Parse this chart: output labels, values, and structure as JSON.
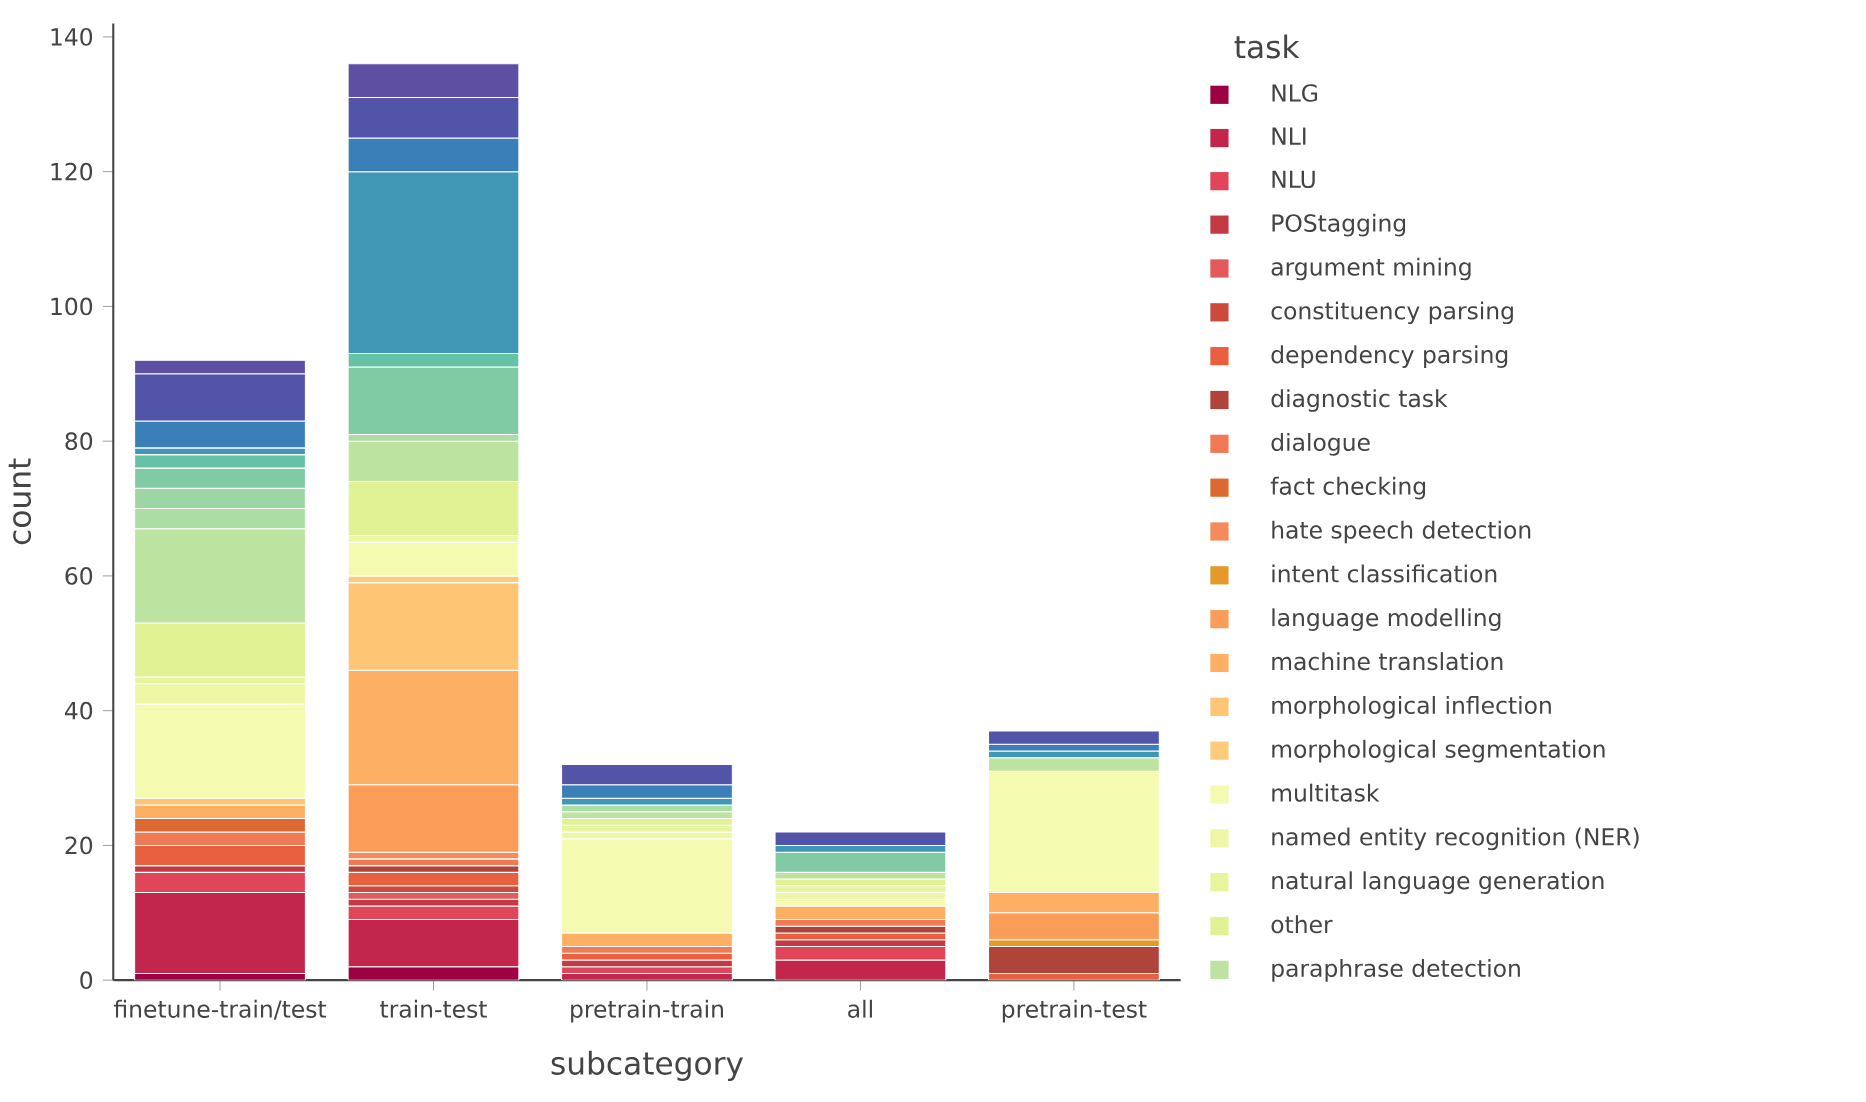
{
  "chart_data": {
    "type": "bar",
    "stacked": true,
    "xlabel": "subcategory",
    "ylabel": "count",
    "legend_title": "task",
    "legend": "right",
    "categories": [
      "finetune-train/test",
      "train-test",
      "pretrain-train",
      "all",
      "pretrain-test"
    ],
    "ylim": [
      0,
      142
    ],
    "yticks": [
      0,
      20,
      40,
      60,
      80,
      100,
      120,
      140
    ],
    "series": [
      {
        "name": "NLG",
        "color": "#9e0142",
        "values": [
          1,
          2,
          0,
          0,
          0
        ]
      },
      {
        "name": "NLI",
        "color": "#c2264a",
        "values": [
          12,
          7,
          1,
          3,
          0
        ]
      },
      {
        "name": "NLU",
        "color": "#e0455a",
        "values": [
          3,
          2,
          1,
          2,
          0
        ]
      },
      {
        "name": "POStagging",
        "color": "#c33a45",
        "values": [
          1,
          1,
          1,
          1,
          0
        ]
      },
      {
        "name": "argument mining",
        "color": "#e25a5a",
        "values": [
          0,
          1,
          0,
          0,
          0
        ]
      },
      {
        "name": "constituency parsing",
        "color": "#cc4a3c",
        "values": [
          0,
          1,
          0,
          0,
          0
        ]
      },
      {
        "name": "dependency parsing",
        "color": "#e86040",
        "values": [
          3,
          2,
          1,
          1,
          1
        ]
      },
      {
        "name": "diagnostic task",
        "color": "#b0443a",
        "values": [
          0,
          1,
          0,
          1,
          4
        ]
      },
      {
        "name": "dialogue",
        "color": "#f07a55",
        "values": [
          2,
          1,
          1,
          1,
          0
        ]
      },
      {
        "name": "fact checking",
        "color": "#dc6a30",
        "values": [
          2,
          0,
          0,
          0,
          0
        ]
      },
      {
        "name": "hate speech detection",
        "color": "#f58a5a",
        "values": [
          0,
          1,
          0,
          0,
          0
        ]
      },
      {
        "name": "intent classification",
        "color": "#e39a2a",
        "values": [
          0,
          0,
          0,
          0,
          1
        ]
      },
      {
        "name": "language modelling",
        "color": "#f99d59",
        "values": [
          0,
          10,
          0,
          0,
          4
        ]
      },
      {
        "name": "machine translation",
        "color": "#fdb063",
        "values": [
          2,
          17,
          2,
          2,
          3
        ]
      },
      {
        "name": "morphological inflection",
        "color": "#fdc574",
        "values": [
          1,
          13,
          0,
          0,
          0
        ]
      },
      {
        "name": "morphological segmentation",
        "color": "#fdcb7b",
        "values": [
          0,
          1,
          0,
          0,
          0
        ]
      },
      {
        "name": "multitask",
        "color": "#f4fbb0",
        "values": [
          14,
          5,
          14,
          1,
          18
        ]
      },
      {
        "name": "named entity recognition (NER)",
        "color": "#eef7a5",
        "values": [
          3,
          1,
          1,
          1,
          0
        ]
      },
      {
        "name": "natural language generation",
        "color": "#e9f59d",
        "values": [
          1,
          0,
          1,
          1,
          0
        ]
      },
      {
        "name": "other",
        "color": "#e0f293",
        "values": [
          8,
          8,
          1,
          1,
          0
        ]
      },
      {
        "name": "paraphrase detection",
        "color": "#bce3a0",
        "values": [
          14,
          6,
          1,
          1,
          2
        ]
      },
      {
        "color": "#abdda4",
        "values": [
          3,
          1,
          1,
          0,
          0
        ]
      },
      {
        "color": "#9dd6a4",
        "values": [
          3,
          0,
          0,
          0,
          0
        ]
      },
      {
        "color": "#80cba4",
        "values": [
          3,
          10,
          0,
          3,
          0
        ]
      },
      {
        "color": "#66c2a5",
        "values": [
          2,
          2,
          0,
          0,
          0
        ]
      },
      {
        "color": "#4198b6",
        "values": [
          1,
          27,
          1,
          1,
          1
        ]
      },
      {
        "color": "#3a7fb8",
        "values": [
          4,
          5,
          2,
          0,
          1
        ]
      },
      {
        "color": "#5254a8",
        "values": [
          7,
          6,
          3,
          2,
          2
        ]
      },
      {
        "color": "#5e4fa2",
        "values": [
          2,
          5,
          0,
          0,
          0
        ]
      }
    ]
  }
}
